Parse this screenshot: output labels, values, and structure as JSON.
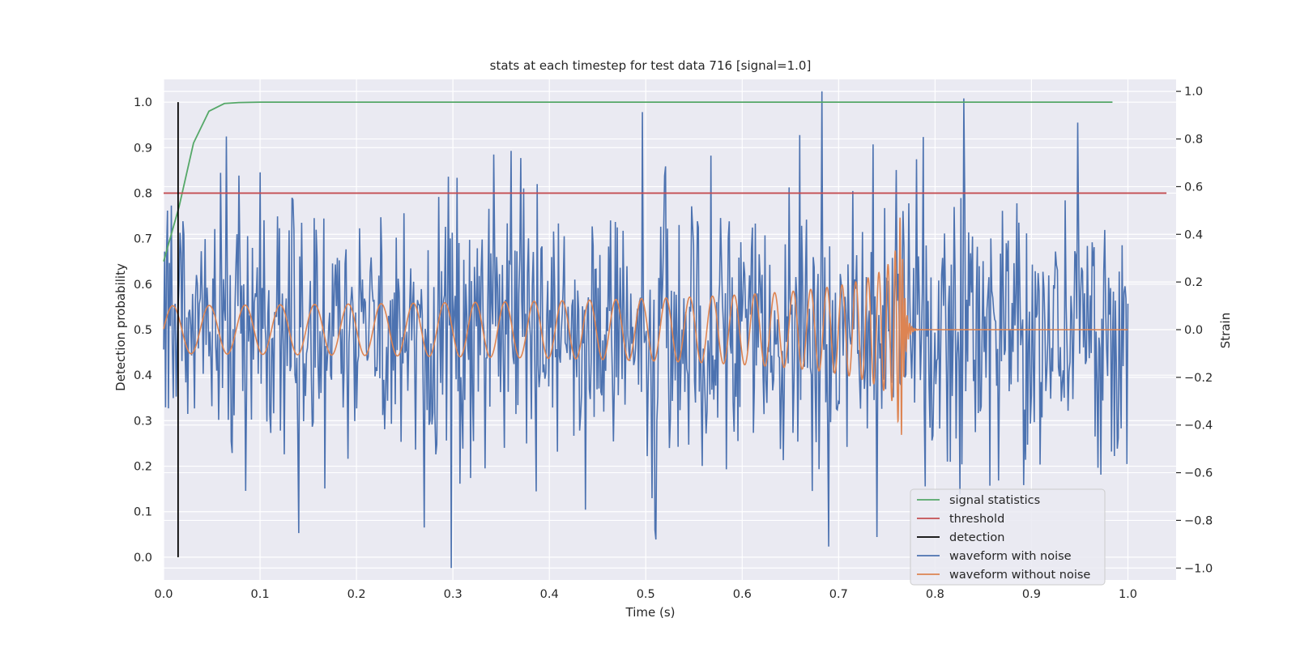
{
  "chart_data": {
    "type": "line",
    "title": "stats at each timestep for test data 716 [signal=1.0]",
    "xlabel": "Time (s)",
    "ylabel": "Detection probability",
    "y2label": "Strain",
    "xlim": [
      0.0,
      1.05
    ],
    "ylim": [
      -0.05,
      1.05
    ],
    "y2lim": [
      -1.05,
      1.05
    ],
    "xticks": [
      "0.0",
      "0.1",
      "0.2",
      "0.3",
      "0.4",
      "0.5",
      "0.6",
      "0.7",
      "0.8",
      "0.9",
      "1.0"
    ],
    "yticks": [
      "0.0",
      "0.1",
      "0.2",
      "0.3",
      "0.4",
      "0.5",
      "0.6",
      "0.7",
      "0.8",
      "0.9",
      "1.0"
    ],
    "y2ticks": [
      "−1.0",
      "−0.8",
      "−0.6",
      "−0.4",
      "−0.2",
      "0.0",
      "0.2",
      "0.4",
      "0.6",
      "0.8",
      "1.0"
    ],
    "grid": true,
    "legend_position": "lower-right",
    "colors": {
      "signal_statistics": "#55a868",
      "threshold": "#c44e52",
      "detection": "#000000",
      "waveform_with_noise": "#4c72b0",
      "waveform_without_noise": "#dd8452",
      "plot_background": "#eaeaf2",
      "grid": "#ffffff"
    },
    "series": [
      {
        "name": "signal statistics",
        "axis": "left",
        "x": [
          0.0,
          0.016,
          0.031,
          0.047,
          0.063,
          0.078,
          0.1,
          0.2,
          0.4,
          0.6,
          0.8,
          0.984
        ],
        "y": [
          0.65,
          0.77,
          0.91,
          0.98,
          0.997,
          0.999,
          1.0,
          1.0,
          1.0,
          1.0,
          1.0,
          1.0
        ]
      },
      {
        "name": "threshold",
        "axis": "left",
        "x": [
          0.0,
          1.04
        ],
        "y": [
          0.8,
          0.8
        ]
      },
      {
        "name": "detection",
        "axis": "left",
        "x": [
          0.015,
          0.015
        ],
        "y": [
          0.0,
          1.0
        ]
      },
      {
        "name": "waveform with noise",
        "axis": "right",
        "x_range": [
          0.0,
          1.0
        ],
        "sample_count": 1000,
        "y_range": [
          -1.0,
          1.0
        ],
        "notable_peaks": [
          {
            "x": 0.683,
            "y": 1.0
          },
          {
            "x": 0.298,
            "y": -1.0
          },
          {
            "x": 0.36,
            "y": 0.75
          },
          {
            "x": 0.37,
            "y": 0.72
          },
          {
            "x": 0.568,
            "y": 0.73
          },
          {
            "x": 0.1,
            "y": 0.66
          },
          {
            "x": 0.76,
            "y": 0.67
          },
          {
            "x": 0.27,
            "y": -0.83
          },
          {
            "x": 0.69,
            "y": -0.91
          },
          {
            "x": 0.74,
            "y": -0.87
          },
          {
            "x": 0.51,
            "y": -0.84
          }
        ]
      },
      {
        "name": "waveform without noise",
        "axis": "right",
        "type": "chirp",
        "x_range": [
          0.0,
          1.0
        ],
        "merger_time": 0.765,
        "peak_amplitude": 0.47,
        "start_amplitude": 0.1,
        "start_frequency_hz": 26,
        "end_frequency_hz": 420
      }
    ]
  }
}
